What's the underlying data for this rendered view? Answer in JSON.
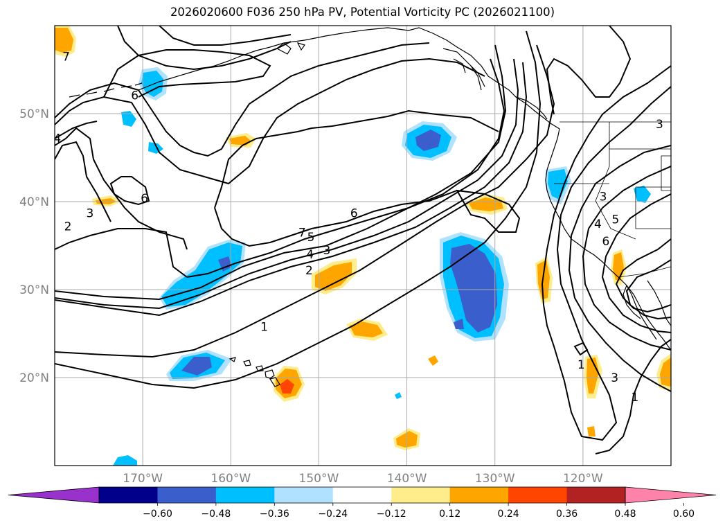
{
  "title": "2026020600 F036 250 hPa PV, Potential Vorticity PC (2026021100)",
  "map": {
    "lon_range": [
      -180,
      -110
    ],
    "lat_range": [
      10,
      60
    ],
    "lat_ticks": [
      {
        "value": 50,
        "label": "50°N"
      },
      {
        "value": 40,
        "label": "40°N"
      },
      {
        "value": 30,
        "label": "30°N"
      },
      {
        "value": 20,
        "label": "20°N"
      }
    ],
    "lon_ticks": [
      {
        "value": -170,
        "label": "170°W"
      },
      {
        "value": -160,
        "label": "160°W"
      },
      {
        "value": -150,
        "label": "150°W"
      },
      {
        "value": -140,
        "label": "140°W"
      },
      {
        "value": -130,
        "label": "130°W"
      },
      {
        "value": -120,
        "label": "120°W"
      }
    ],
    "grid": true,
    "contour_color": "#000000"
  },
  "colorbar": {
    "orientation": "horizontal",
    "extend": "both",
    "colors": [
      "#9932cc",
      "#00008b",
      "#3a5fcd",
      "#00bfff",
      "#b0e2ff",
      "#ffffff",
      "#ffec8b",
      "#ffa500",
      "#ff4500",
      "#b22222",
      "#ff82ab"
    ],
    "tick_labels": [
      "−0.60",
      "−0.48",
      "−0.36",
      "−0.24",
      "−0.12",
      "0.12",
      "0.24",
      "0.36",
      "0.48",
      "0.60"
    ]
  },
  "contour_labels": [
    {
      "text": "6",
      "lon": -170.9,
      "lat": 52.1
    },
    {
      "text": "6",
      "lon": -169.8,
      "lat": 40.4
    },
    {
      "text": "3",
      "lon": -176.0,
      "lat": 38.7
    },
    {
      "text": "2",
      "lon": -178.5,
      "lat": 37.2
    },
    {
      "text": "4",
      "lon": -179.7,
      "lat": 47.2
    },
    {
      "text": "7",
      "lon": -178.7,
      "lat": 56.5
    },
    {
      "text": "7",
      "lon": -151.9,
      "lat": 36.5
    },
    {
      "text": "5",
      "lon": -150.9,
      "lat": 36.0
    },
    {
      "text": "6",
      "lon": -146.0,
      "lat": 38.7
    },
    {
      "text": "4",
      "lon": -151.0,
      "lat": 34.0
    },
    {
      "text": "3",
      "lon": -149.1,
      "lat": 34.5
    },
    {
      "text": "2",
      "lon": -151.1,
      "lat": 32.2
    },
    {
      "text": "1",
      "lon": -156.2,
      "lat": 25.8
    },
    {
      "text": "3",
      "lon": -117.7,
      "lat": 40.6
    },
    {
      "text": "4",
      "lon": -118.3,
      "lat": 37.5
    },
    {
      "text": "5",
      "lon": -116.3,
      "lat": 38.0
    },
    {
      "text": "6",
      "lon": -117.4,
      "lat": 35.5
    },
    {
      "text": "1",
      "lon": -120.2,
      "lat": 21.5
    },
    {
      "text": "3",
      "lon": -116.4,
      "lat": 20.0
    },
    {
      "text": "1",
      "lon": -114.1,
      "lat": 17.8
    },
    {
      "text": "3",
      "lon": -111.3,
      "lat": 48.8
    }
  ]
}
